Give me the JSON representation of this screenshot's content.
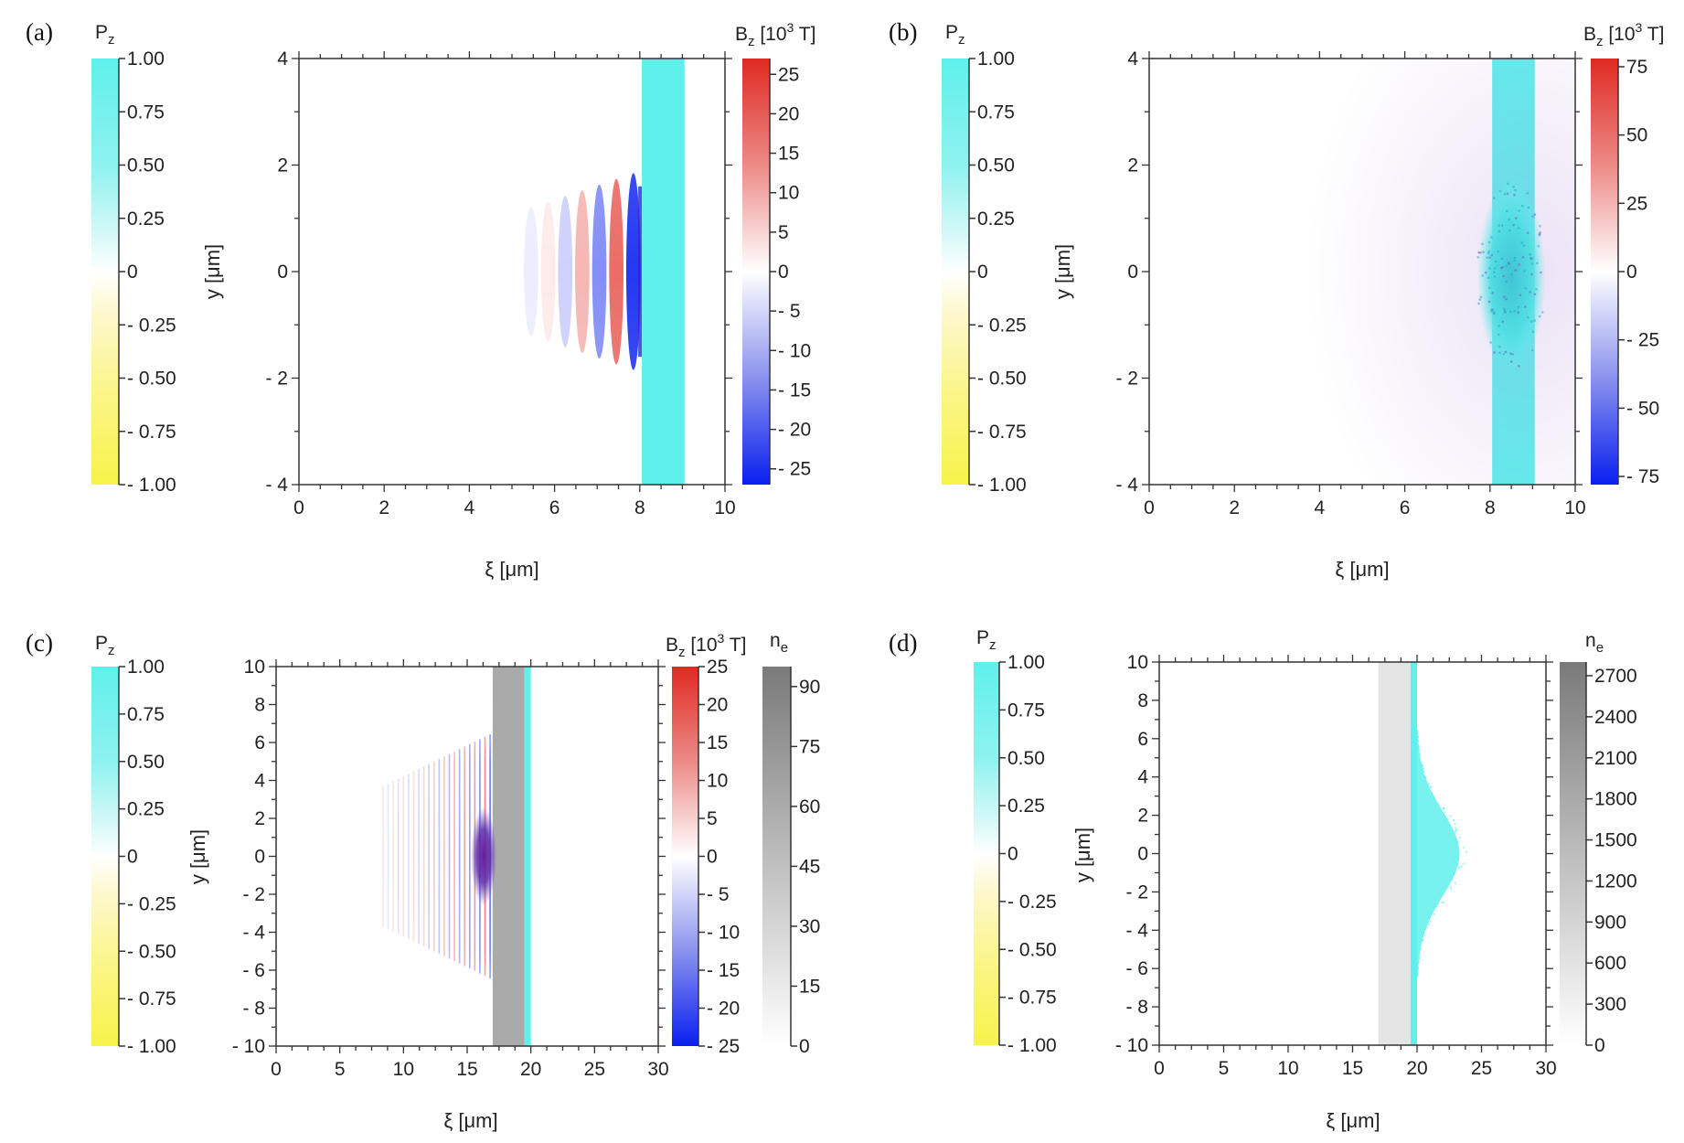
{
  "colors": {
    "pz_top": "#5ff0ec",
    "pz_upper": "#c6f7f6",
    "pz_mid": "#ffffff",
    "pz_lower": "#fcf69c",
    "pz_bottom": "#f6f34a",
    "bz_top": "#e02a22",
    "bz_mid": "#ffffff",
    "bz_bottom": "#0a1ff0",
    "ne_top": "#7a7a7a",
    "ne_bottom": "#ffffff",
    "cyan": "#5ff0ec",
    "dark_band": "#aaaaaa",
    "light_band": "#e4e4e4",
    "axis": "#333333"
  },
  "chart_data": [
    {
      "panel": "(a)",
      "type": "heatmap",
      "xlabel": "ξ [μm]",
      "ylabel": "y [μm]",
      "xlim": [
        0,
        10
      ],
      "ylim": [
        -4,
        4
      ],
      "xticks": [
        0,
        2,
        4,
        6,
        8,
        10
      ],
      "xtick_labels": [
        "0",
        "2",
        "4",
        "6",
        "8",
        "10"
      ],
      "yticks": [
        -4,
        -2,
        0,
        2,
        4
      ],
      "ytick_labels": [
        "- 4",
        "- 2",
        "0",
        "2",
        "4"
      ],
      "pz_colorbar": {
        "label_main": "P",
        "label_sub": "z",
        "range": [
          -1,
          1
        ],
        "ticks": [
          1,
          0.75,
          0.5,
          0.25,
          0,
          -0.25,
          -0.5,
          -0.75,
          -1
        ],
        "tick_labels": [
          "1.00",
          "0.75",
          "0.50",
          "0.25",
          "0",
          "- 0.25",
          "- 0.50",
          "- 0.75",
          "- 1.00"
        ]
      },
      "bz_colorbar": {
        "label_main": "B",
        "label_sub": "z",
        "label_rest": " [10",
        "label_sup": "3",
        "label_end": " T]",
        "range": [
          -27,
          27
        ],
        "ticks": [
          25,
          20,
          15,
          10,
          5,
          0,
          -5,
          -10,
          -15,
          -20,
          -25
        ],
        "tick_labels": [
          "25",
          "20",
          "15",
          "10",
          "5",
          "0",
          "- 5",
          "- 10",
          "- 15",
          "- 20",
          "- 25"
        ]
      },
      "target_band": {
        "x_range": [
          8.05,
          9.05
        ],
        "color": "cyan"
      },
      "field": {
        "x_range": [
          5.2,
          8.05
        ],
        "y_half_width": 1.9,
        "wavelength": 0.8,
        "amplitude_bz": 25
      }
    },
    {
      "panel": "(b)",
      "type": "heatmap",
      "xlabel": "ξ [μm]",
      "ylabel": "y [μm]",
      "xlim": [
        0,
        10
      ],
      "ylim": [
        -4,
        4
      ],
      "xticks": [
        0,
        2,
        4,
        6,
        8,
        10
      ],
      "xtick_labels": [
        "0",
        "2",
        "4",
        "6",
        "8",
        "10"
      ],
      "yticks": [
        -4,
        -2,
        0,
        2,
        4
      ],
      "ytick_labels": [
        "- 4",
        "- 2",
        "0",
        "2",
        "4"
      ],
      "pz_colorbar": {
        "label_main": "P",
        "label_sub": "z",
        "range": [
          -1,
          1
        ],
        "ticks": [
          1,
          0.75,
          0.5,
          0.25,
          0,
          -0.25,
          -0.5,
          -0.75,
          -1
        ],
        "tick_labels": [
          "1.00",
          "0.75",
          "0.50",
          "0.25",
          "0",
          "- 0.25",
          "- 0.50",
          "- 0.75",
          "- 1.00"
        ]
      },
      "bz_colorbar": {
        "label_main": "B",
        "label_sub": "z",
        "label_rest": " [10",
        "label_sup": "3",
        "label_end": " T]",
        "range": [
          -78,
          78
        ],
        "ticks": [
          75,
          50,
          25,
          0,
          -25,
          -50,
          -75
        ],
        "tick_labels": [
          "75",
          "50",
          "25",
          "0",
          "- 25",
          "- 50",
          "- 75"
        ]
      },
      "target_band": {
        "x_range": [
          8.05,
          9.05
        ],
        "color": "cyan"
      },
      "blob": {
        "x_center": 8.5,
        "y_center": -0.1,
        "x_half": 0.8,
        "y_half": 1.8
      }
    },
    {
      "panel": "(c)",
      "type": "heatmap",
      "xlabel": "ξ [μm]",
      "ylabel": "y [μm]",
      "xlim": [
        0,
        30
      ],
      "ylim": [
        -10,
        10
      ],
      "xticks": [
        0,
        5,
        10,
        15,
        20,
        25,
        30
      ],
      "xtick_labels": [
        "0",
        "5",
        "10",
        "15",
        "20",
        "25",
        "30"
      ],
      "yticks": [
        -10,
        -8,
        -6,
        -4,
        -2,
        0,
        2,
        4,
        6,
        8,
        10
      ],
      "ytick_labels": [
        "- 10",
        "- 8",
        "- 6",
        "- 4",
        "- 2",
        "0",
        "2",
        "4",
        "6",
        "8",
        "10"
      ],
      "pz_colorbar": {
        "label_main": "P",
        "label_sub": "z",
        "range": [
          -1,
          1
        ],
        "ticks": [
          1,
          0.75,
          0.5,
          0.25,
          0,
          -0.25,
          -0.5,
          -0.75,
          -1
        ],
        "tick_labels": [
          "1.00",
          "0.75",
          "0.50",
          "0.25",
          "0",
          "- 0.25",
          "- 0.50",
          "- 0.75",
          "- 1.00"
        ]
      },
      "bz_colorbar": {
        "label_main": "B",
        "label_sub": "z",
        "label_rest": " [10",
        "label_sup": "3",
        "label_end": " T]",
        "range": [
          -25,
          25
        ],
        "ticks": [
          25,
          20,
          15,
          10,
          5,
          0,
          -5,
          -10,
          -15,
          -20,
          -25
        ],
        "tick_labels": [
          "25",
          "20",
          "15",
          "10",
          "5",
          "0",
          "- 5",
          "- 10",
          "- 15",
          "- 20",
          "- 25"
        ]
      },
      "ne_colorbar": {
        "label_main": "n",
        "label_sub": "e",
        "range": [
          0,
          95
        ],
        "ticks": [
          90,
          75,
          60,
          45,
          30,
          15,
          0
        ],
        "tick_labels": [
          "90",
          "75",
          "60",
          "45",
          "30",
          "15",
          "0"
        ]
      },
      "dense_band": {
        "x_range": [
          17.0,
          19.5
        ]
      },
      "target_band": {
        "x_range": [
          19.5,
          20.0
        ],
        "color": "cyan"
      },
      "field": {
        "x_range": [
          8.0,
          17.0
        ],
        "y_half_width": 6.5,
        "wavelength": 0.8
      },
      "blob": {
        "x_center": 16.3,
        "y_center": 0,
        "x_half": 1.0,
        "y_half": 2.6
      }
    },
    {
      "panel": "(d)",
      "type": "heatmap",
      "xlabel": "ξ [μm]",
      "ylabel": "y [μm]",
      "xlim": [
        0,
        30
      ],
      "ylim": [
        -10,
        10
      ],
      "xticks": [
        0,
        5,
        10,
        15,
        20,
        25,
        30
      ],
      "xtick_labels": [
        "0",
        "5",
        "10",
        "15",
        "20",
        "25",
        "30"
      ],
      "yticks": [
        -10,
        -8,
        -6,
        -4,
        -2,
        0,
        2,
        4,
        6,
        8,
        10
      ],
      "ytick_labels": [
        "- 10",
        "- 8",
        "- 6",
        "- 4",
        "- 2",
        "0",
        "2",
        "4",
        "6",
        "8",
        "10"
      ],
      "pz_colorbar": {
        "label_main": "P",
        "label_sub": "z",
        "range": [
          -1,
          1
        ],
        "ticks": [
          1,
          0.75,
          0.5,
          0.25,
          0,
          -0.25,
          -0.5,
          -0.75,
          -1
        ],
        "tick_labels": [
          "1.00",
          "0.75",
          "0.50",
          "0.25",
          "0",
          "- 0.25",
          "- 0.50",
          "- 0.75",
          "- 1.00"
        ]
      },
      "ne_colorbar": {
        "label_main": "n",
        "label_sub": "e",
        "range": [
          0,
          2800
        ],
        "ticks": [
          2700,
          2400,
          2100,
          1800,
          1500,
          1200,
          900,
          600,
          300,
          0
        ],
        "tick_labels": [
          "2700",
          "2400",
          "2100",
          "1800",
          "1500",
          "1200",
          "900",
          "600",
          "300",
          "0"
        ]
      },
      "light_band": {
        "x_range": [
          17.0,
          19.5
        ]
      },
      "target_band": {
        "x_range": [
          19.5,
          20.0
        ],
        "color": "cyan"
      },
      "plume": {
        "x_start": 20.0,
        "max_extent": 3.3,
        "y_half_width": 6.5
      }
    }
  ]
}
